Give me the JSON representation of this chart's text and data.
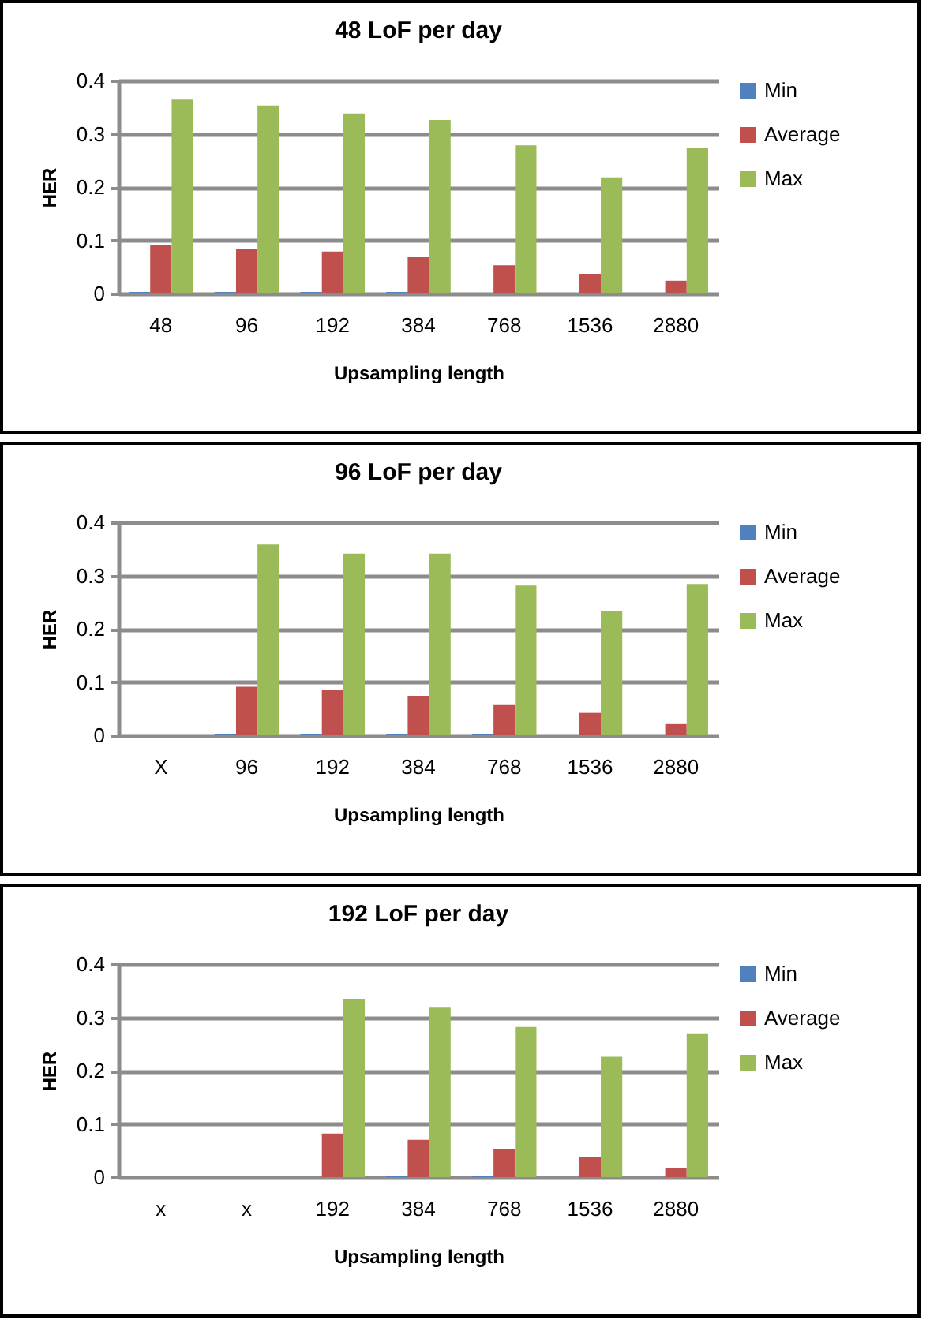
{
  "chart_data": [
    {
      "type": "bar",
      "title": "48 LoF per day",
      "xlabel": "Upsampling length",
      "ylabel": "HER",
      "categories": [
        "48",
        "96",
        "192",
        "384",
        "768",
        "1536",
        "2880"
      ],
      "ylim": [
        0,
        0.4
      ],
      "yticks": [
        0,
        0.1,
        0.2,
        0.3,
        0.4
      ],
      "grid": "y",
      "legend": "right",
      "series": [
        {
          "name": "Min",
          "color": "#4f81bd",
          "values": [
            0.003,
            0.003,
            0.003,
            0.003,
            0,
            0,
            0
          ]
        },
        {
          "name": "Average",
          "color": "#c0504d",
          "values": [
            0.091,
            0.084,
            0.079,
            0.068,
            0.053,
            0.037,
            0.024
          ]
        },
        {
          "name": "Max",
          "color": "#9bbb59",
          "values": [
            0.364,
            0.353,
            0.338,
            0.326,
            0.278,
            0.218,
            0.274
          ]
        }
      ]
    },
    {
      "type": "bar",
      "title": "96 LoF per day",
      "xlabel": "Upsampling length",
      "ylabel": "HER",
      "categories": [
        "X",
        "96",
        "192",
        "384",
        "768",
        "1536",
        "2880"
      ],
      "ylim": [
        0,
        0.4
      ],
      "yticks": [
        0,
        0.1,
        0.2,
        0.3,
        0.4
      ],
      "grid": "y",
      "legend": "right",
      "series": [
        {
          "name": "Min",
          "color": "#4f81bd",
          "values": [
            null,
            0.003,
            0.003,
            0.003,
            0.003,
            0,
            0
          ]
        },
        {
          "name": "Average",
          "color": "#c0504d",
          "values": [
            null,
            0.091,
            0.086,
            0.074,
            0.058,
            0.042,
            0.021
          ]
        },
        {
          "name": "Max",
          "color": "#9bbb59",
          "values": [
            null,
            0.358,
            0.341,
            0.341,
            0.281,
            0.233,
            0.284
          ]
        }
      ]
    },
    {
      "type": "bar",
      "title": "192 LoF per day",
      "xlabel": "Upsampling length",
      "ylabel": "HER",
      "categories": [
        "x",
        "x",
        "192",
        "384",
        "768",
        "1536",
        "2880"
      ],
      "ylim": [
        0,
        0.4
      ],
      "yticks": [
        0,
        0.1,
        0.2,
        0.3,
        0.4
      ],
      "grid": "y",
      "legend": "right",
      "series": [
        {
          "name": "Min",
          "color": "#4f81bd",
          "values": [
            null,
            null,
            0,
            0.003,
            0.003,
            0,
            0
          ]
        },
        {
          "name": "Average",
          "color": "#c0504d",
          "values": [
            null,
            null,
            0.082,
            0.07,
            0.053,
            0.037,
            0.017
          ]
        },
        {
          "name": "Max",
          "color": "#9bbb59",
          "values": [
            null,
            null,
            0.335,
            0.318,
            0.282,
            0.226,
            0.27
          ]
        }
      ]
    }
  ]
}
